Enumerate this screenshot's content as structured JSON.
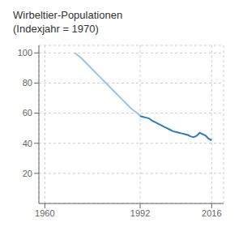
{
  "chart_data": {
    "type": "line",
    "title": "Wirbeltier-Populationen\n(Indexjahr = 1970)",
    "series": [
      {
        "color": "#99c4e8",
        "x": [
          1970,
          1971,
          1972,
          1973,
          1974,
          1975,
          1976,
          1977,
          1978,
          1979,
          1980,
          1981,
          1982,
          1983,
          1984,
          1985,
          1986,
          1987,
          1988,
          1989,
          1990,
          1991,
          1992
        ],
        "values": [
          100,
          98.5,
          97,
          95,
          93,
          91,
          89,
          87,
          85,
          83,
          81,
          79,
          77,
          75,
          73,
          71,
          69,
          67,
          65,
          63,
          61.5,
          60,
          58
        ]
      },
      {
        "color": "#2b7bbf",
        "x": [
          1992,
          1993,
          1994,
          1995,
          1996,
          1997,
          1998,
          1999,
          2000,
          2001,
          2002,
          2003,
          2004,
          2005,
          2006,
          2007,
          2008,
          2009,
          2010,
          2011,
          2012,
          2013,
          2014,
          2015,
          2016
        ],
        "values": [
          58,
          57.5,
          57,
          56.5,
          55,
          54,
          53,
          52,
          51,
          50,
          49,
          48,
          47.5,
          47,
          46.5,
          46,
          45.5,
          44.5,
          44,
          45,
          47,
          46,
          45,
          43,
          42
        ]
      }
    ],
    "xlim": [
      1958,
      2020
    ],
    "xticks": [
      1960,
      1992,
      2016
    ],
    "ylim": [
      0,
      105
    ],
    "yticks": [
      20,
      40,
      60,
      80,
      100
    ],
    "grid": true
  }
}
